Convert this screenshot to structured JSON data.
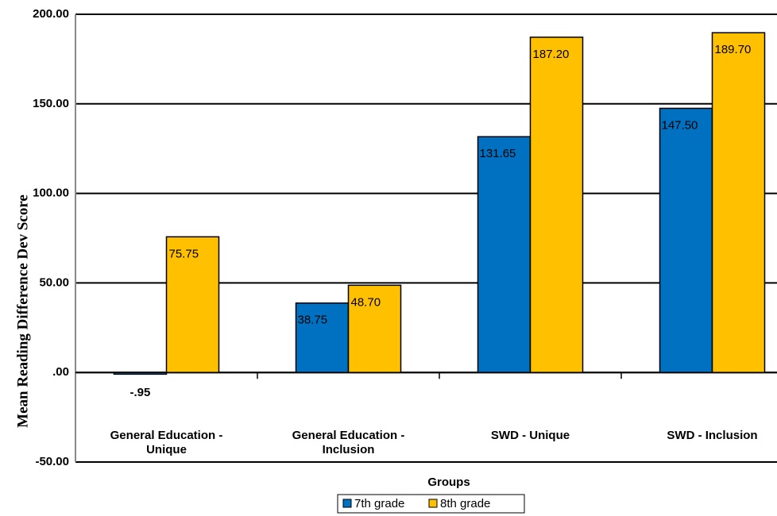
{
  "chart_data": {
    "type": "bar",
    "y_axis_label": "Mean Reading Difference Dev Score",
    "x_axis_label": "Groups",
    "categories": [
      "General Education - Unique",
      "General Education - Inclusion",
      "SWD - Unique",
      "SWD - Inclusion"
    ],
    "series": [
      {
        "name": "7th grade",
        "color": "#0070c0",
        "values": [
          -0.95,
          38.75,
          131.65,
          147.5
        ],
        "value_labels": [
          "-.95",
          "38.75",
          "131.65",
          "147.50"
        ]
      },
      {
        "name": "8th grade",
        "color": "#ffc000",
        "values": [
          75.75,
          48.7,
          187.2,
          189.7
        ],
        "value_labels": [
          "75.75",
          "48.70",
          "187.20",
          "189.70"
        ]
      }
    ],
    "ylim": [
      -50,
      200
    ],
    "yticks": [
      {
        "value": -50,
        "label": "-50.00"
      },
      {
        "value": 0,
        "label": ".00"
      },
      {
        "value": 50,
        "label": "50.00"
      },
      {
        "value": 100,
        "label": "100.00"
      },
      {
        "value": 150,
        "label": "150.00"
      },
      {
        "value": 200,
        "label": "200.00"
      }
    ],
    "grid": true,
    "legend": "bottom"
  }
}
